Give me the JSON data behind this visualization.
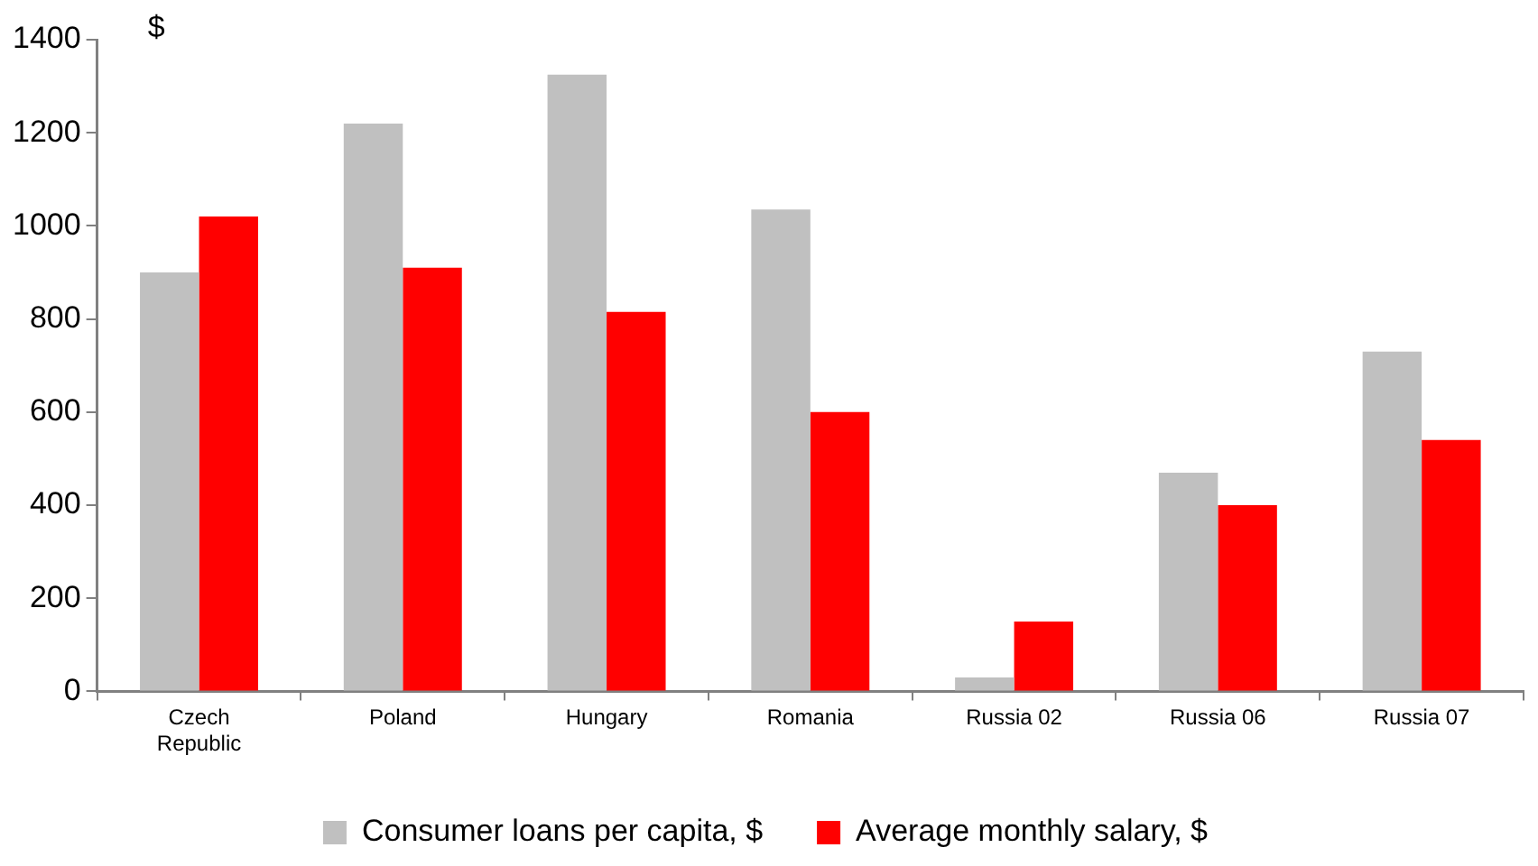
{
  "chart_data": {
    "type": "bar",
    "ylabel": "$",
    "categories": [
      "Czech Republic",
      "Poland",
      "Hungary",
      "Romania",
      "Russia 02",
      "Russia 06",
      "Russia 07"
    ],
    "series": [
      {
        "name": "Consumer loans per capita, $",
        "color": "#c0c0c0",
        "values": [
          900,
          1220,
          1325,
          1035,
          30,
          470,
          730
        ]
      },
      {
        "name": "Average monthly salary, $",
        "color": "#ff0000",
        "values": [
          1020,
          910,
          815,
          600,
          150,
          400,
          540
        ]
      }
    ],
    "ylim": [
      0,
      1400
    ],
    "yticks": [
      0,
      200,
      400,
      600,
      800,
      1000,
      1200,
      1400
    ],
    "grid": false,
    "legend": "bottom"
  }
}
